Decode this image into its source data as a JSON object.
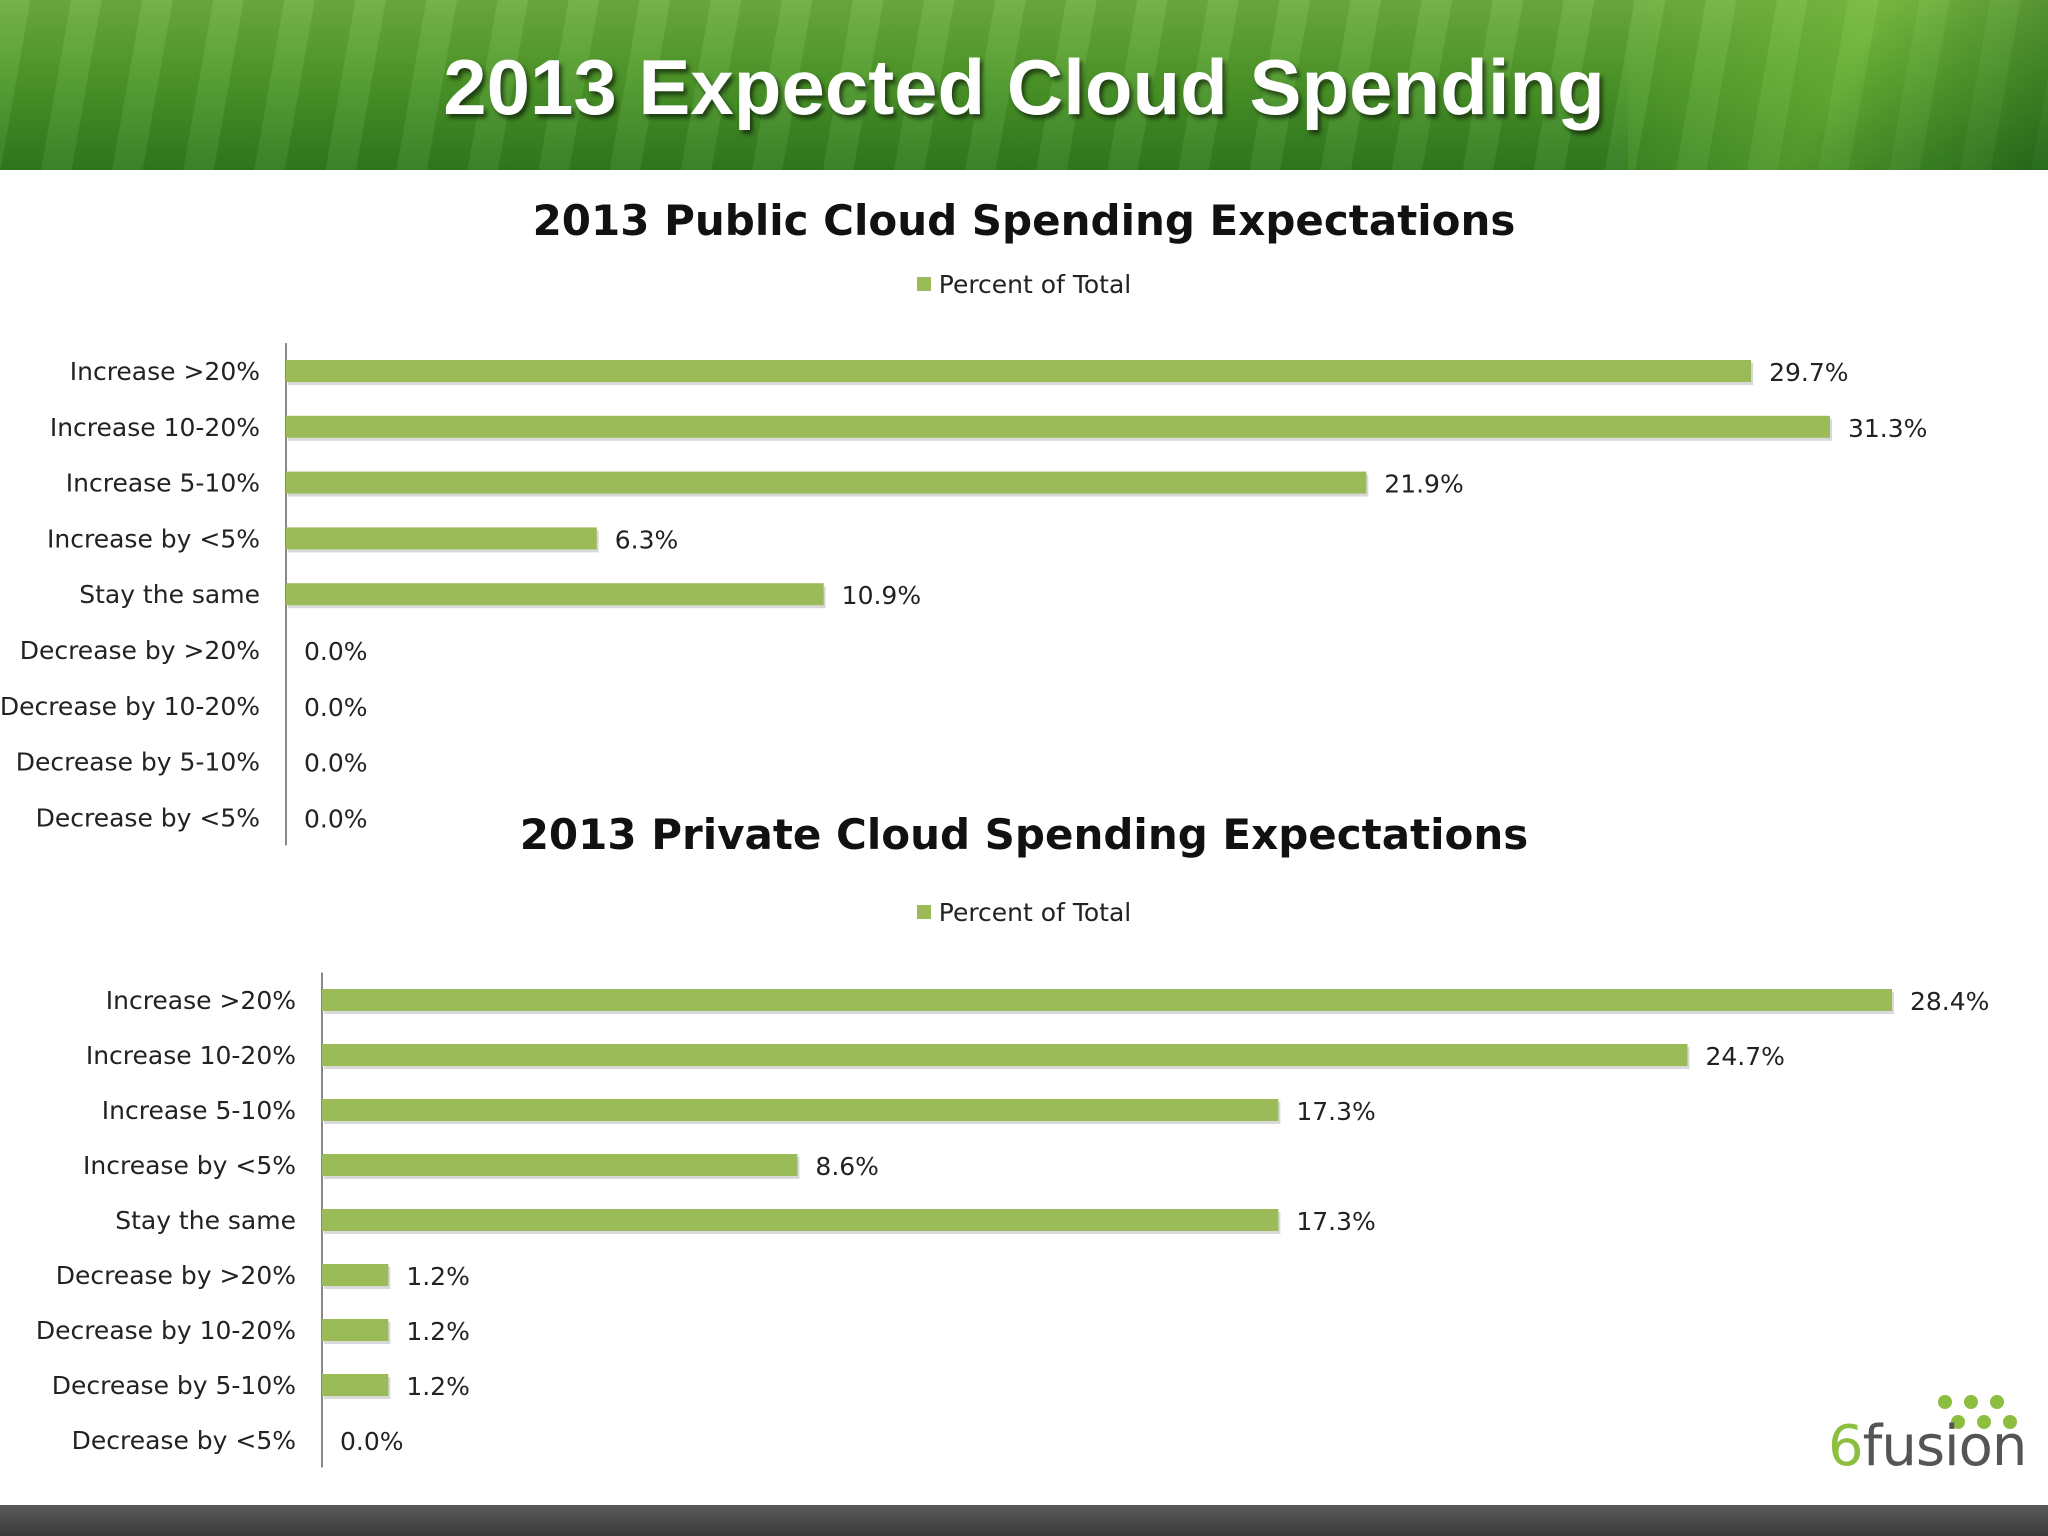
{
  "slide": {
    "title": "2013 Expected Cloud Spending"
  },
  "colors": {
    "bar": "#9bbb59",
    "axis": "#888888"
  },
  "logo": {
    "text": "fusion",
    "prefix": "6"
  },
  "chart_data": [
    {
      "type": "bar",
      "orientation": "horizontal",
      "title": "2013 Public Cloud Spending Expectations",
      "legend": "top",
      "categories": [
        "Increase >20%",
        "Increase 10-20%",
        "Increase 5-10%",
        "Increase by <5%",
        "Stay the same",
        "Decrease by >20%",
        "Decrease by 10-20%",
        "Decrease by 5-10%",
        "Decrease by <5%"
      ],
      "series": [
        {
          "name": "Percent of Total",
          "values": [
            29.7,
            31.3,
            21.9,
            6.3,
            10.9,
            0.0,
            0.0,
            0.0,
            0.0
          ],
          "labels": [
            "29.7%",
            "31.3%",
            "21.9%",
            "6.3%",
            "10.9%",
            "0.0%",
            "0.0%",
            "0.0%",
            "0.0%"
          ]
        }
      ],
      "xlim": [
        0,
        31.3
      ],
      "grid": false
    },
    {
      "type": "bar",
      "orientation": "horizontal",
      "title": "2013 Private Cloud Spending Expectations",
      "legend": "top",
      "categories": [
        "Increase >20%",
        "Increase 10-20%",
        "Increase 5-10%",
        "Increase by <5%",
        "Stay the same",
        "Decrease by >20%",
        "Decrease by 10-20%",
        "Decrease by 5-10%",
        "Decrease by <5%"
      ],
      "series": [
        {
          "name": "Percent of Total",
          "values": [
            28.4,
            24.7,
            17.3,
            8.6,
            17.3,
            1.2,
            1.2,
            1.2,
            0.0
          ],
          "labels": [
            "28.4%",
            "24.7%",
            "17.3%",
            "8.6%",
            "17.3%",
            "1.2%",
            "1.2%",
            "1.2%",
            "0.0%"
          ]
        }
      ],
      "xlim": [
        0,
        28.4
      ],
      "grid": false
    }
  ]
}
